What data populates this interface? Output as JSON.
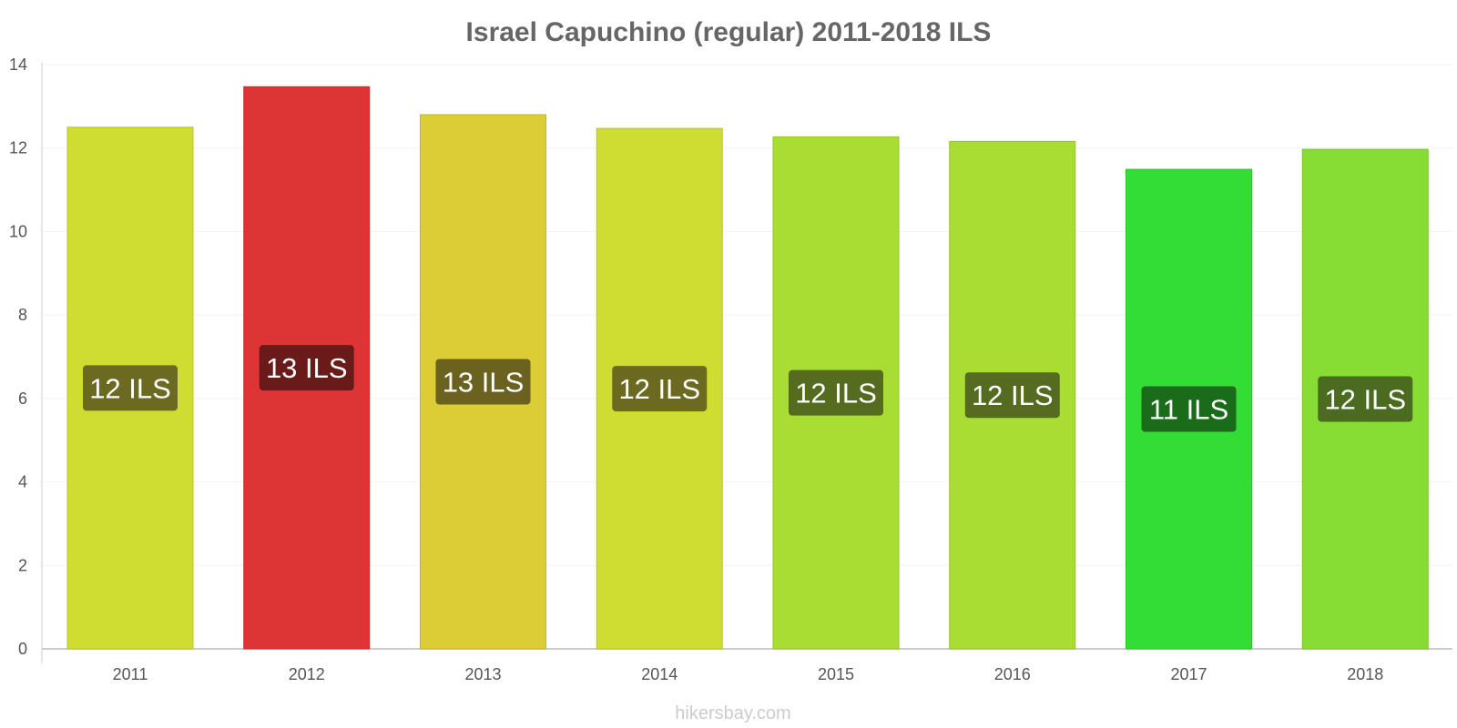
{
  "chart_data": {
    "type": "bar",
    "title": "Israel Capuchino (regular) 2011-2018 ILS",
    "categories": [
      "2011",
      "2012",
      "2013",
      "2014",
      "2015",
      "2016",
      "2017",
      "2018"
    ],
    "values": [
      12.5,
      13.47,
      12.8,
      12.47,
      12.27,
      12.16,
      11.49,
      11.97
    ],
    "data_labels": [
      "12 ILS",
      "13 ILS",
      "13 ILS",
      "12 ILS",
      "12 ILS",
      "12 ILS",
      "11 ILS",
      "12 ILS"
    ],
    "bar_colors": [
      "#cfdd33",
      "#dd3535",
      "#dccc35",
      "#cfdd33",
      "#aadd33",
      "#aadd33",
      "#33dd35",
      "#88dd35"
    ],
    "bar_stroke_colors": [
      "#b7c42a",
      "#c42c2c",
      "#c4b52c",
      "#b7c42a",
      "#95c42a",
      "#95c42a",
      "#2ac42c",
      "#77c42c"
    ],
    "label_colors": [
      "#6b6a20",
      "#6b1a1a",
      "#6b6220",
      "#6b6a20",
      "#556b20",
      "#556b20",
      "#1a6b1a",
      "#4a6b20"
    ],
    "yticks": [
      "0",
      "2",
      "4",
      "6",
      "8",
      "10",
      "12",
      "14"
    ],
    "ylim": [
      0,
      14
    ],
    "xlabel": "",
    "ylabel": "",
    "grid": true,
    "watermark": "hikersbay.com"
  }
}
